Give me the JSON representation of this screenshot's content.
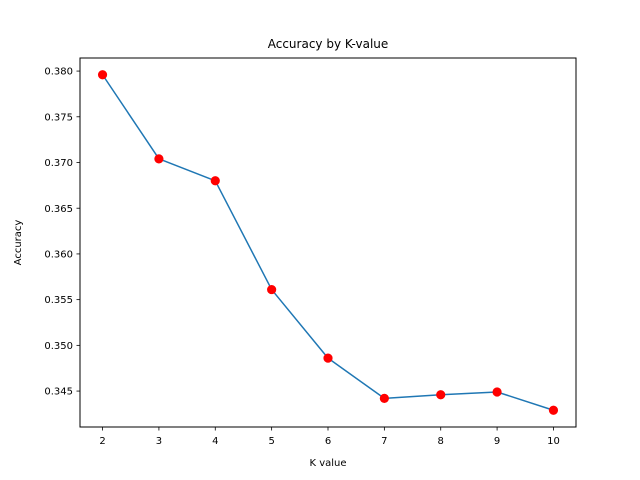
{
  "chart_data": {
    "type": "line",
    "title": "Accuracy by K-value",
    "xlabel": "K value",
    "ylabel": "Accuracy",
    "x": [
      2,
      3,
      4,
      5,
      6,
      7,
      8,
      9,
      10
    ],
    "series": [
      {
        "values": [
          0.3796,
          0.3704,
          0.368,
          0.3561,
          0.3486,
          0.3442,
          0.3446,
          0.3449,
          0.3429
        ],
        "line_color": "#1f77b4",
        "marker_color": "#ff0000"
      }
    ],
    "xlim": [
      1.6,
      10.4
    ],
    "ylim": [
      0.34107,
      0.38143
    ],
    "xticks": [
      2,
      3,
      4,
      5,
      6,
      7,
      8,
      9,
      10
    ],
    "xtick_labels": [
      "2",
      "3",
      "4",
      "5",
      "6",
      "7",
      "8",
      "9",
      "10"
    ],
    "yticks": [
      0.345,
      0.35,
      0.355,
      0.36,
      0.365,
      0.37,
      0.375,
      0.38
    ],
    "ytick_labels": [
      "0.345",
      "0.350",
      "0.355",
      "0.360",
      "0.365",
      "0.370",
      "0.375",
      "0.380"
    ],
    "grid": false,
    "legend": "none"
  }
}
